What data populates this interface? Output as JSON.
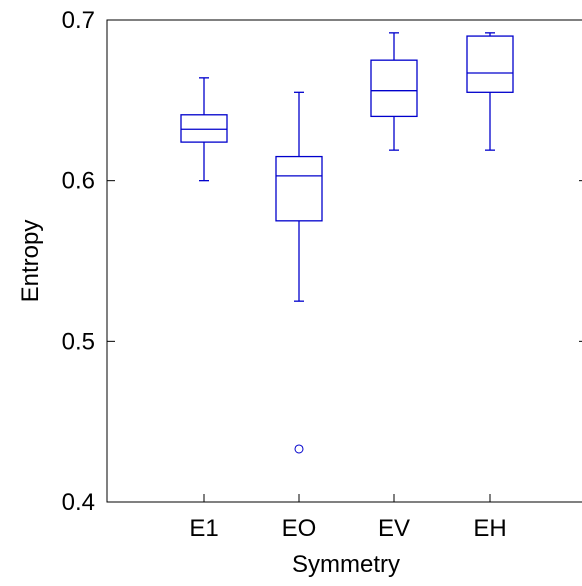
{
  "chart_data": {
    "type": "box",
    "title": "",
    "xlabel": "Symmetry",
    "ylabel": "Entropy",
    "ylim": [
      0.4,
      0.7
    ],
    "yticks": [
      "0.4",
      "0.5",
      "0.6",
      "0.7"
    ],
    "categories": [
      "E1",
      "EO",
      "EV",
      "EH"
    ],
    "boxes": [
      {
        "category": "E1",
        "whisker_low": 0.6,
        "q1": 0.624,
        "median": 0.632,
        "q3": 0.641,
        "whisker_high": 0.664,
        "outliers": []
      },
      {
        "category": "EO",
        "whisker_low": 0.525,
        "q1": 0.575,
        "median": 0.603,
        "q3": 0.615,
        "whisker_high": 0.655,
        "outliers": [
          0.433
        ]
      },
      {
        "category": "EV",
        "whisker_low": 0.619,
        "q1": 0.64,
        "median": 0.656,
        "q3": 0.675,
        "whisker_high": 0.692,
        "outliers": []
      },
      {
        "category": "EH",
        "whisker_low": 0.619,
        "q1": 0.655,
        "median": 0.667,
        "q3": 0.69,
        "whisker_high": 0.692,
        "outliers": []
      }
    ],
    "color": "#0000cc",
    "grid": false
  }
}
